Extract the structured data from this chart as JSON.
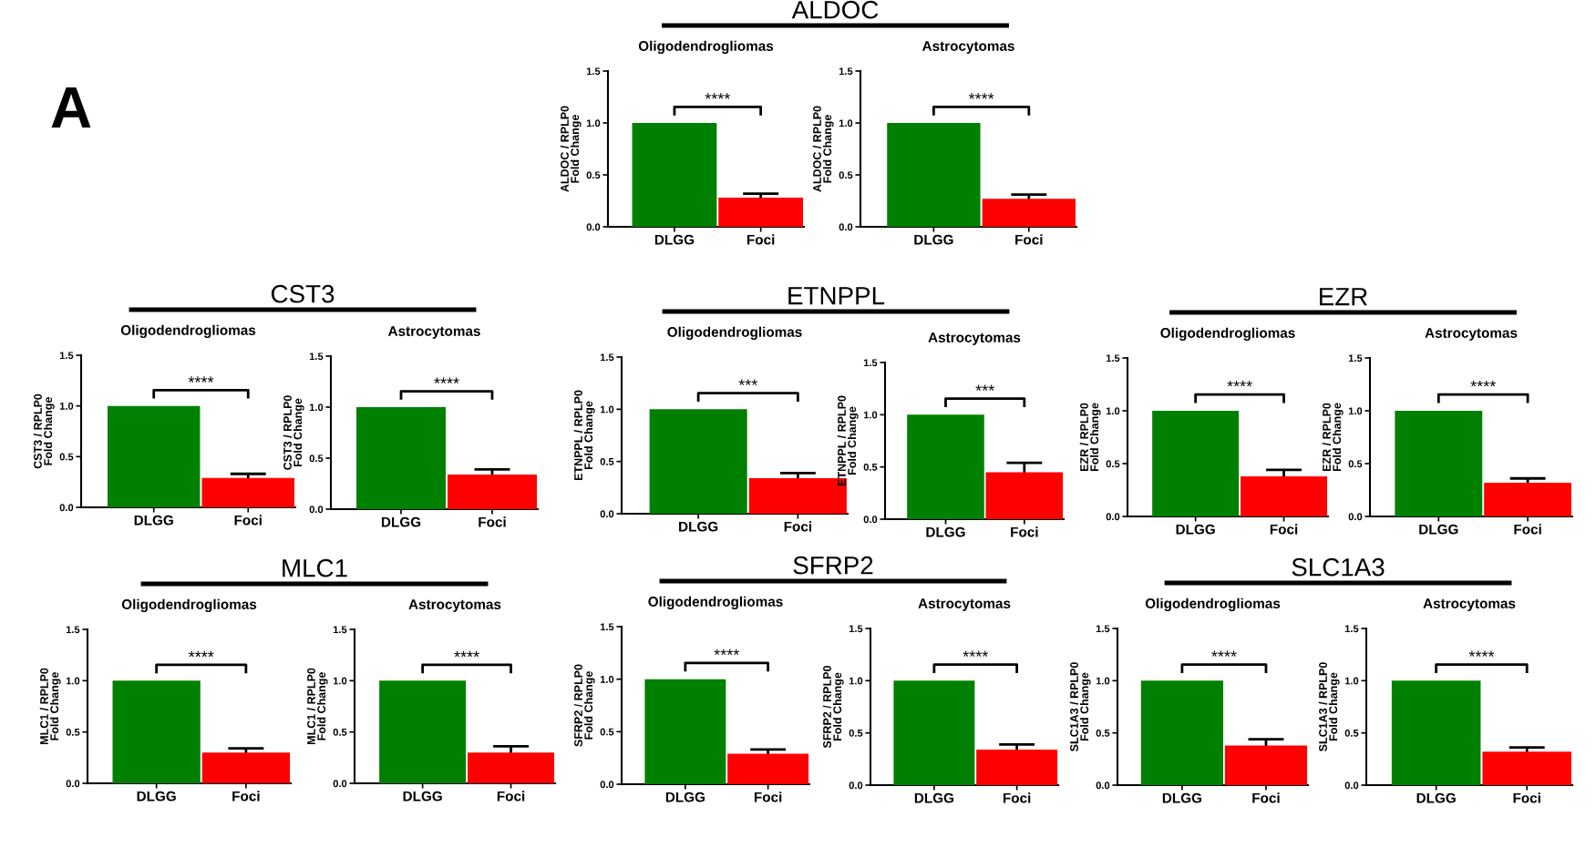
{
  "chart_data": [
    {
      "type": "bar",
      "title": "Oligodendrogliomas",
      "subtitle": "ALDOC",
      "ylabel": "ALDOC / RPLP0\nFold Change",
      "categories": [
        "DLGG",
        "Foci"
      ],
      "values": [
        1.0,
        0.28
      ],
      "errors": [
        null,
        0.04
      ],
      "colors": [
        "#008000",
        "#ff0000"
      ],
      "ylim": [
        0,
        1.5
      ],
      "yticks": [
        {
          "value": 0,
          "label": "0.0"
        },
        {
          "value": 0.5,
          "label": "0.5"
        },
        {
          "value": 1,
          "label": "1.0"
        },
        {
          "value": 1.5,
          "label": "1.5"
        }
      ],
      "annotations": [
        "A",
        "****"
      ]
    },
    {
      "type": "bar",
      "title": "Astrocytomas",
      "ylabel": "ALDOC / RPLP0\nFold Change",
      "categories": [
        "DLGG",
        "Foci"
      ],
      "values": [
        1.0,
        0.27
      ],
      "errors": [
        null,
        0.04
      ],
      "colors": [
        "#008000",
        "#ff0000"
      ],
      "ylim": [
        0,
        1.5
      ],
      "yticks": [
        {
          "value": 0,
          "label": "0.0"
        },
        {
          "value": 0.5,
          "label": "0.5"
        },
        {
          "value": 1,
          "label": "1.0"
        },
        {
          "value": 1.5,
          "label": "1.5"
        }
      ],
      "annotations": [
        "****"
      ]
    },
    {
      "type": "bar",
      "title": "Oligodendrogliomas",
      "subtitle": "CST3",
      "ylabel": "CST3 / RPLP0\nFold Change",
      "categories": [
        "DLGG",
        "Foci"
      ],
      "values": [
        1.0,
        0.29
      ],
      "errors": [
        null,
        0.04
      ],
      "colors": [
        "#008000",
        "#ff0000"
      ],
      "ylim": [
        0,
        1.5
      ],
      "yticks": [
        {
          "value": 0,
          "label": "0.0"
        },
        {
          "value": 0.5,
          "label": "0.5"
        },
        {
          "value": 1,
          "label": "1.0"
        },
        {
          "value": 1.5,
          "label": "1.5"
        }
      ],
      "annotations": [
        "****"
      ]
    },
    {
      "type": "bar",
      "title": "Astrocytomas",
      "ylabel": "CST3 / RPLP0\nFold Change",
      "categories": [
        "DLGG",
        "Foci"
      ],
      "values": [
        1.0,
        0.34
      ],
      "errors": [
        null,
        0.05
      ],
      "colors": [
        "#008000",
        "#ff0000"
      ],
      "ylim": [
        0,
        1.5
      ],
      "yticks": [
        {
          "value": 0,
          "label": "0.0"
        },
        {
          "value": 0.5,
          "label": "0.5"
        },
        {
          "value": 1,
          "label": "1.0"
        },
        {
          "value": 1.5,
          "label": "1.5"
        }
      ],
      "annotations": [
        "****"
      ]
    },
    {
      "type": "bar",
      "title": "Oligodendrogliomas",
      "subtitle": "ETNPPL",
      "ylabel": "ETNPPL / RPLP0\nFold Change",
      "categories": [
        "DLGG",
        "Foci"
      ],
      "values": [
        1.0,
        0.34
      ],
      "errors": [
        null,
        0.05
      ],
      "colors": [
        "#008000",
        "#ff0000"
      ],
      "ylim": [
        0,
        1.5
      ],
      "yticks": [
        {
          "value": 0,
          "label": "0.0"
        },
        {
          "value": 0.5,
          "label": "0.5"
        },
        {
          "value": 1,
          "label": "1.0"
        },
        {
          "value": 1.5,
          "label": "1.5"
        }
      ],
      "annotations": [
        "***"
      ]
    },
    {
      "type": "bar",
      "title": "Astrocytomas",
      "ylabel": "ETNPPL / RPLP0\nFold Change",
      "categories": [
        "DLGG",
        "Foci"
      ],
      "values": [
        1.0,
        0.45
      ],
      "errors": [
        null,
        0.09
      ],
      "colors": [
        "#008000",
        "#ff0000"
      ],
      "ylim": [
        0,
        1.5
      ],
      "yticks": [
        {
          "value": 0,
          "label": "0.0"
        },
        {
          "value": 0.5,
          "label": "0.5"
        },
        {
          "value": 1,
          "label": "1.0"
        },
        {
          "value": 1.5,
          "label": "1.5"
        }
      ],
      "annotations": [
        "***"
      ]
    },
    {
      "type": "bar",
      "title": "Oligodendrogliomas",
      "subtitle": "EZR",
      "ylabel": "EZR / RPLP0\nFold Change",
      "categories": [
        "DLGG",
        "Foci"
      ],
      "values": [
        1.0,
        0.38
      ],
      "errors": [
        null,
        0.06
      ],
      "colors": [
        "#008000",
        "#ff0000"
      ],
      "ylim": [
        0,
        1.5
      ],
      "yticks": [
        {
          "value": 0,
          "label": "0.0"
        },
        {
          "value": 0.5,
          "label": "0.5"
        },
        {
          "value": 1,
          "label": "1.0"
        },
        {
          "value": 1.5,
          "label": "1.5"
        }
      ],
      "annotations": [
        "****"
      ]
    },
    {
      "type": "bar",
      "title": "Astrocytomas",
      "ylabel": "EZR / RPLP0\nFold Change",
      "categories": [
        "DLGG",
        "Foci"
      ],
      "values": [
        1.0,
        0.32
      ],
      "errors": [
        null,
        0.04
      ],
      "colors": [
        "#008000",
        "#ff0000"
      ],
      "ylim": [
        0,
        1.5
      ],
      "yticks": [
        {
          "value": 0,
          "label": "0.0"
        },
        {
          "value": 0.5,
          "label": "0.5"
        },
        {
          "value": 1,
          "label": "1.0"
        },
        {
          "value": 1.5,
          "label": "1.5"
        }
      ],
      "annotations": [
        "****"
      ]
    },
    {
      "type": "bar",
      "title": "Oligodendrogliomas",
      "subtitle": "MLC1",
      "ylabel": "MLC1 / RPLP0\nFold Change",
      "categories": [
        "DLGG",
        "Foci"
      ],
      "values": [
        1.0,
        0.3
      ],
      "errors": [
        null,
        0.04
      ],
      "colors": [
        "#008000",
        "#ff0000"
      ],
      "ylim": [
        0,
        1.5
      ],
      "yticks": [
        {
          "value": 0,
          "label": "0.0"
        },
        {
          "value": 0.5,
          "label": "0.5"
        },
        {
          "value": 1,
          "label": "1.0"
        },
        {
          "value": 1.5,
          "label": "1.5"
        }
      ],
      "annotations": [
        "****"
      ]
    },
    {
      "type": "bar",
      "title": "Astrocytomas",
      "ylabel": "MLC1 / RPLP0\nFold Change",
      "categories": [
        "DLGG",
        "Foci"
      ],
      "values": [
        1.0,
        0.3
      ],
      "errors": [
        null,
        0.06
      ],
      "colors": [
        "#008000",
        "#ff0000"
      ],
      "ylim": [
        0,
        1.5
      ],
      "yticks": [
        {
          "value": 0,
          "label": "0.0"
        },
        {
          "value": 0.5,
          "label": "0.5"
        },
        {
          "value": 1,
          "label": "1.0"
        },
        {
          "value": 1.5,
          "label": "1.5"
        }
      ],
      "annotations": [
        "****"
      ]
    },
    {
      "type": "bar",
      "title": "Oligodendrogliomas",
      "subtitle": "SFRP2",
      "ylabel": "SFRP2 / RPLP0\nFold Change",
      "categories": [
        "DLGG",
        "Foci"
      ],
      "values": [
        1.0,
        0.29
      ],
      "errors": [
        null,
        0.04
      ],
      "colors": [
        "#008000",
        "#ff0000"
      ],
      "ylim": [
        0,
        1.5
      ],
      "yticks": [
        {
          "value": 0,
          "label": "0.0"
        },
        {
          "value": 0.5,
          "label": "0.5"
        },
        {
          "value": 1,
          "label": "1.0"
        },
        {
          "value": 1.5,
          "label": "1.5"
        }
      ],
      "annotations": [
        "****"
      ]
    },
    {
      "type": "bar",
      "title": "Astrocytomas",
      "ylabel": "SFRP2 / RPLP0\nFold Change",
      "categories": [
        "DLGG",
        "Foci"
      ],
      "values": [
        1.0,
        0.34
      ],
      "errors": [
        null,
        0.05
      ],
      "colors": [
        "#008000",
        "#ff0000"
      ],
      "ylim": [
        0,
        1.5
      ],
      "yticks": [
        {
          "value": 0,
          "label": "0.0"
        },
        {
          "value": 0.5,
          "label": "0.5"
        },
        {
          "value": 1,
          "label": "1.0"
        },
        {
          "value": 1.5,
          "label": "1.5"
        }
      ],
      "annotations": [
        "****"
      ]
    },
    {
      "type": "bar",
      "title": "Oligodendrogliomas",
      "subtitle": "SLC1A3",
      "ylabel": "SLC1A3 / RPLP0\nFold Change",
      "categories": [
        "DLGG",
        "Foci"
      ],
      "values": [
        1.0,
        0.38
      ],
      "errors": [
        null,
        0.06
      ],
      "colors": [
        "#008000",
        "#ff0000"
      ],
      "ylim": [
        0,
        1.5
      ],
      "yticks": [
        {
          "value": 0,
          "label": "0.0"
        },
        {
          "value": 0.5,
          "label": "0.5"
        },
        {
          "value": 1,
          "label": "1.0"
        },
        {
          "value": 1.5,
          "label": "1.5"
        }
      ],
      "annotations": [
        "****"
      ]
    },
    {
      "type": "bar",
      "title": "Astrocytomas",
      "ylabel": "SLC1A3 / RPLP0\nFold Change",
      "categories": [
        "DLGG",
        "Foci"
      ],
      "values": [
        1.0,
        0.32
      ],
      "errors": [
        null,
        0.04
      ],
      "colors": [
        "#008000",
        "#ff0000"
      ],
      "ylim": [
        0,
        1.5
      ],
      "yticks": [
        {
          "value": 0,
          "label": "0.0"
        },
        {
          "value": 0.5,
          "label": "0.5"
        },
        {
          "value": 1,
          "label": "1.0"
        },
        {
          "value": 1.5,
          "label": "1.5"
        }
      ],
      "annotations": [
        "****"
      ]
    }
  ]
}
